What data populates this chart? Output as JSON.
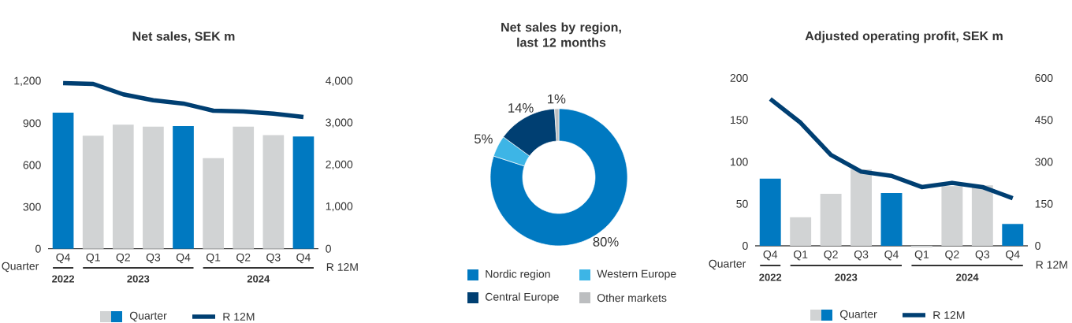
{
  "chart_data": [
    {
      "type": "bar",
      "title": "Net sales, SEK m",
      "xlabel": "Quarter",
      "y2label": "R 12M",
      "categories": [
        "Q4",
        "Q1",
        "Q2",
        "Q3",
        "Q4",
        "Q1",
        "Q2",
        "Q3",
        "Q4"
      ],
      "series": [
        {
          "name": "Quarter",
          "colors": [
            "#0079c1",
            "#d1d3d4",
            "#d1d3d4",
            "#d1d3d4",
            "#0079c1",
            "#d1d3d4",
            "#d1d3d4",
            "#d1d3d4",
            "#0079c1"
          ],
          "values": [
            975,
            810,
            890,
            875,
            880,
            650,
            875,
            815,
            805
          ]
        },
        {
          "name": "R 12M",
          "type": "line",
          "axis": "y2",
          "color": "#003f72",
          "values": [
            3960,
            3940,
            3690,
            3550,
            3470,
            3300,
            3280,
            3230,
            3150
          ]
        }
      ],
      "ylim": [
        0,
        1200
      ],
      "yticks": [
        0,
        300,
        600,
        900,
        {
          "value": 1200,
          "label": "1,200"
        }
      ],
      "y2lim": [
        0,
        4000
      ],
      "y2ticks": [
        0,
        {
          "value": 1000,
          "label": "1,000"
        },
        {
          "value": 2000,
          "label": "2,000"
        },
        {
          "value": 3000,
          "label": "3,000"
        },
        {
          "value": 4000,
          "label": "4,000"
        }
      ],
      "annotations": [
        "2022",
        "2023",
        "2024"
      ],
      "legend": "bottom"
    },
    {
      "type": "donut",
      "title": "Net sales by region, last 12 months",
      "categories": [
        "Nordic region",
        "Western Europe",
        "Central Europe",
        "Other markets"
      ],
      "values": [
        80,
        5,
        14,
        1
      ],
      "colors": [
        "#0079c1",
        "#3db5e6",
        "#003f72",
        "#bcbec0"
      ],
      "value_labels": [
        "80%",
        "5%",
        "14%",
        "1%"
      ],
      "legend": "bottom"
    },
    {
      "type": "bar",
      "title": "Adjusted operating profit, SEK m",
      "xlabel": "Quarter",
      "y2label": "R 12M",
      "categories": [
        "Q4",
        "Q1",
        "Q2",
        "Q3",
        "Q4",
        "Q1",
        "Q2",
        "Q3",
        "Q4"
      ],
      "series": [
        {
          "name": "Quarter",
          "colors": [
            "#0079c1",
            "#d1d3d4",
            "#d1d3d4",
            "#d1d3d4",
            "#0079c1",
            "#d1d3d4",
            "#d1d3d4",
            "#d1d3d4",
            "#0079c1"
          ],
          "values": [
            80,
            34,
            62,
            91,
            63,
            -2,
            71,
            72,
            26
          ]
        },
        {
          "name": "R 12M",
          "type": "line",
          "axis": "y2",
          "color": "#003f72",
          "values": [
            525,
            440,
            325,
            265,
            250,
            210,
            225,
            210,
            170
          ]
        }
      ],
      "ylim": [
        -5,
        200
      ],
      "yticks": [
        0,
        50,
        100,
        150,
        200
      ],
      "y2lim": [
        -15,
        600
      ],
      "y2ticks": [
        0,
        150,
        300,
        450,
        600
      ],
      "annotations": [
        "2022",
        "2023",
        "2024"
      ],
      "legend": "bottom"
    }
  ]
}
